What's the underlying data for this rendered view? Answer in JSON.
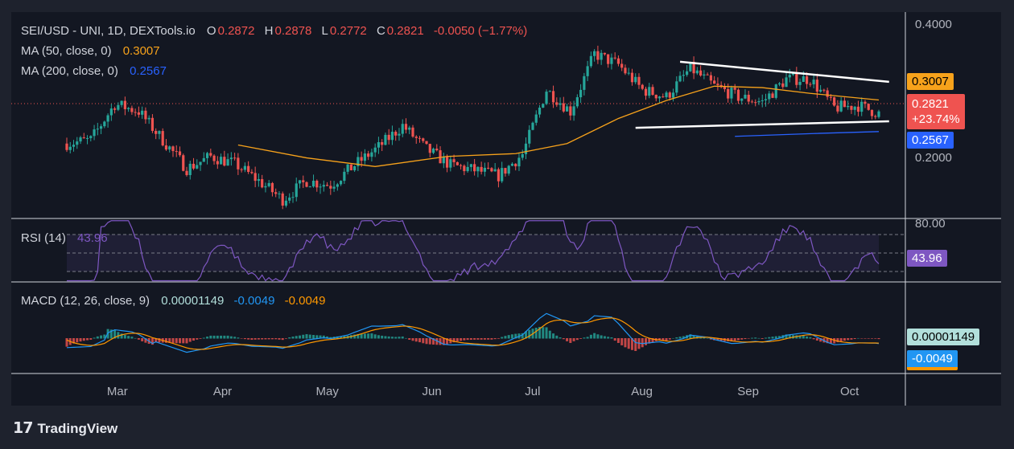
{
  "header": {
    "symbol": "SEI/USD - UNI, 1D, DEXTools.io",
    "o_label": "O",
    "o_value": "0.2872",
    "h_label": "H",
    "h_value": "0.2878",
    "l_label": "L",
    "l_value": "0.2772",
    "c_label": "C",
    "c_value": "0.2821",
    "change": "-0.0050 (−1.77%)"
  },
  "ma50": {
    "label": "MA (50, close, 0)",
    "value": "0.3007"
  },
  "ma200": {
    "label": "MA (200, close, 0)",
    "value": "0.2567"
  },
  "rsi": {
    "label": "RSI (14)",
    "value": "43.96"
  },
  "macd": {
    "label": "MACD (12, 26, close, 9)",
    "hist": "0.00001149",
    "macd": "-0.0049",
    "signal": "-0.0049"
  },
  "badges": {
    "ma50": "0.3007",
    "price": "0.2821",
    "price_change": "+23.74%",
    "ma200": "0.2567",
    "rsi": "43.96",
    "macd_hist": "0.00001149",
    "macd_val": "-0.0049"
  },
  "axis": {
    "price_ticks": [
      "0.4000",
      "0.2000"
    ],
    "rsi_tick": "80.00",
    "months": [
      "Mar",
      "Apr",
      "May",
      "Jun",
      "Jul",
      "Aug",
      "Sep",
      "Oct"
    ]
  },
  "brand": "TradingView",
  "colors": {
    "up": "#26a69a",
    "down": "#ef5350",
    "ma50": "#f7a21b",
    "ma200": "#2962ff",
    "rsi": "#7e57c2",
    "macd": "#2196f3",
    "signal": "#ff9800"
  },
  "chart_data": {
    "type": "candlestick",
    "title": "SEI/USD - UNI, 1D, DEXTools.io",
    "x_range": [
      "2024-02-15",
      "2024-10-09"
    ],
    "ylim": [
      0.14,
      0.42
    ],
    "price_path": [
      [
        "2024-02-15",
        0.24
      ],
      [
        "2024-02-22",
        0.245
      ],
      [
        "2024-02-29",
        0.295
      ],
      [
        "2024-03-07",
        0.285
      ],
      [
        "2024-03-14",
        0.245
      ],
      [
        "2024-03-21",
        0.205
      ],
      [
        "2024-03-28",
        0.222
      ],
      [
        "2024-04-04",
        0.212
      ],
      [
        "2024-04-11",
        0.188
      ],
      [
        "2024-04-18",
        0.162
      ],
      [
        "2024-04-25",
        0.188
      ],
      [
        "2024-05-02",
        0.182
      ],
      [
        "2024-05-09",
        0.21
      ],
      [
        "2024-05-16",
        0.235
      ],
      [
        "2024-05-23",
        0.265
      ],
      [
        "2024-05-30",
        0.232
      ],
      [
        "2024-06-06",
        0.21
      ],
      [
        "2024-06-13",
        0.203
      ],
      [
        "2024-06-20",
        0.195
      ],
      [
        "2024-06-27",
        0.225
      ],
      [
        "2024-07-04",
        0.315
      ],
      [
        "2024-07-11",
        0.285
      ],
      [
        "2024-07-18",
        0.365
      ],
      [
        "2024-07-25",
        0.35
      ],
      [
        "2024-08-01",
        0.315
      ],
      [
        "2024-08-08",
        0.305
      ],
      [
        "2024-08-15",
        0.345
      ],
      [
        "2024-08-22",
        0.32
      ],
      [
        "2024-08-29",
        0.305
      ],
      [
        "2024-09-05",
        0.298
      ],
      [
        "2024-09-12",
        0.33
      ],
      [
        "2024-09-19",
        0.33
      ],
      [
        "2024-09-26",
        0.29
      ],
      [
        "2024-10-03",
        0.293
      ],
      [
        "2024-10-09",
        0.2821
      ]
    ],
    "ma50": [
      [
        "2024-04-05",
        0.238
      ],
      [
        "2024-04-25",
        0.22
      ],
      [
        "2024-05-15",
        0.208
      ],
      [
        "2024-06-05",
        0.222
      ],
      [
        "2024-06-25",
        0.226
      ],
      [
        "2024-07-10",
        0.24
      ],
      [
        "2024-07-25",
        0.275
      ],
      [
        "2024-08-08",
        0.3
      ],
      [
        "2024-08-22",
        0.32
      ],
      [
        "2024-09-05",
        0.318
      ],
      [
        "2024-09-19",
        0.31
      ],
      [
        "2024-10-09",
        0.3007
      ]
    ],
    "ma200": [
      [
        "2024-08-28",
        0.25
      ],
      [
        "2024-09-20",
        0.254
      ],
      [
        "2024-10-09",
        0.2567
      ]
    ],
    "trendlines": [
      [
        [
          "2024-08-12",
          0.354
        ],
        [
          "2024-10-12",
          0.326
        ]
      ],
      [
        [
          "2024-07-30",
          0.262
        ],
        [
          "2024-10-12",
          0.271
        ]
      ]
    ],
    "rsi_ticks": [
      "80.00"
    ],
    "rsi_last": 43.96,
    "macd_last": -0.0049,
    "signal_last": -0.0049,
    "hist_last": 1.149e-05
  }
}
